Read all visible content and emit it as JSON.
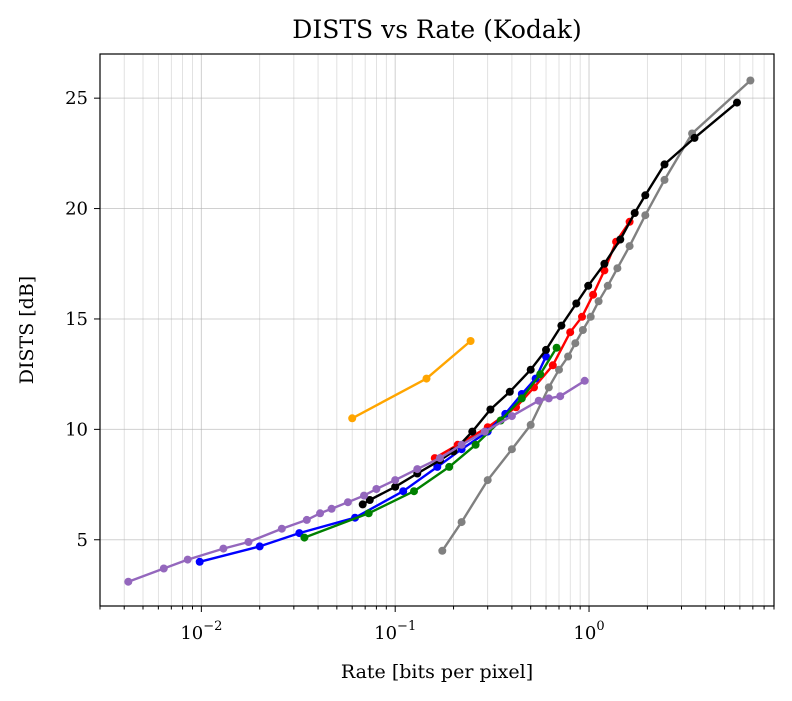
{
  "chart_data": {
    "type": "line",
    "title": "DISTS vs Rate (Kodak)",
    "xlabel": "Rate [bits per pixel]",
    "ylabel": "DISTS [dB]",
    "x_scale": "log",
    "xlim": [
      0.003,
      9
    ],
    "ylim": [
      2,
      27
    ],
    "grid": true,
    "x_tick_labels": [
      {
        "base": "10",
        "exp": "−2",
        "value": 0.01
      },
      {
        "base": "10",
        "exp": "−1",
        "value": 0.1
      },
      {
        "base": "10",
        "exp": "0",
        "value": 1
      }
    ],
    "y_ticks": [
      5,
      10,
      15,
      20,
      25
    ],
    "series": [
      {
        "color": "#808080",
        "x": [
          0.175,
          0.22,
          0.3,
          0.4,
          0.5,
          0.62,
          0.7,
          0.78,
          0.85,
          0.93,
          1.02,
          1.12,
          1.25,
          1.4,
          1.62,
          1.95,
          2.45,
          3.4,
          6.8
        ],
        "y": [
          4.5,
          5.8,
          7.7,
          9.1,
          10.2,
          11.9,
          12.7,
          13.3,
          13.9,
          14.5,
          15.1,
          15.8,
          16.5,
          17.3,
          18.3,
          19.7,
          21.3,
          23.4,
          25.8
        ]
      },
      {
        "color": "#ff0000",
        "x": [
          0.16,
          0.21,
          0.3,
          0.42,
          0.52,
          0.65,
          0.8,
          0.92,
          1.05,
          1.2,
          1.38,
          1.62
        ],
        "y": [
          8.7,
          9.3,
          10.1,
          11.0,
          11.9,
          12.9,
          14.4,
          15.1,
          16.1,
          17.2,
          18.5,
          19.4
        ]
      },
      {
        "color": "#0000ff",
        "x": [
          0.0098,
          0.02,
          0.032,
          0.062,
          0.11,
          0.165,
          0.22,
          0.3,
          0.37,
          0.45,
          0.53,
          0.6
        ],
        "y": [
          4.0,
          4.7,
          5.3,
          6.0,
          7.2,
          8.3,
          9.1,
          9.9,
          10.7,
          11.6,
          12.3,
          13.3
        ]
      },
      {
        "color": "#008000",
        "x": [
          0.034,
          0.073,
          0.125,
          0.19,
          0.26,
          0.35,
          0.45,
          0.56,
          0.68
        ],
        "y": [
          5.1,
          6.2,
          7.2,
          8.3,
          9.3,
          10.4,
          11.4,
          12.5,
          13.7
        ]
      },
      {
        "color": "#000000",
        "x": [
          0.068,
          0.074,
          0.1,
          0.13,
          0.17,
          0.2,
          0.25,
          0.31,
          0.39,
          0.5,
          0.6,
          0.72,
          0.86,
          0.99,
          1.2,
          1.45,
          1.72,
          1.95,
          2.45,
          3.5,
          5.8
        ],
        "y": [
          6.6,
          6.8,
          7.4,
          8.0,
          8.6,
          9.0,
          9.9,
          10.9,
          11.7,
          12.7,
          13.6,
          14.7,
          15.7,
          16.5,
          17.5,
          18.6,
          19.8,
          20.6,
          22.0,
          23.2,
          24.8
        ]
      },
      {
        "color": "#ffa500",
        "x": [
          0.06,
          0.145,
          0.245
        ],
        "y": [
          10.5,
          12.3,
          14.0
        ]
      },
      {
        "color": "#9467bd",
        "x": [
          0.0042,
          0.0064,
          0.0085,
          0.013,
          0.0175,
          0.026,
          0.035,
          0.041,
          0.047,
          0.057,
          0.069,
          0.08,
          0.1,
          0.13,
          0.17,
          0.22,
          0.29,
          0.4,
          0.55,
          0.62,
          0.71,
          0.95
        ],
        "y": [
          3.1,
          3.7,
          4.1,
          4.6,
          4.9,
          5.5,
          5.9,
          6.2,
          6.4,
          6.7,
          7.0,
          7.3,
          7.7,
          8.2,
          8.7,
          9.3,
          9.9,
          10.6,
          11.3,
          11.4,
          11.5,
          12.2
        ]
      }
    ]
  }
}
